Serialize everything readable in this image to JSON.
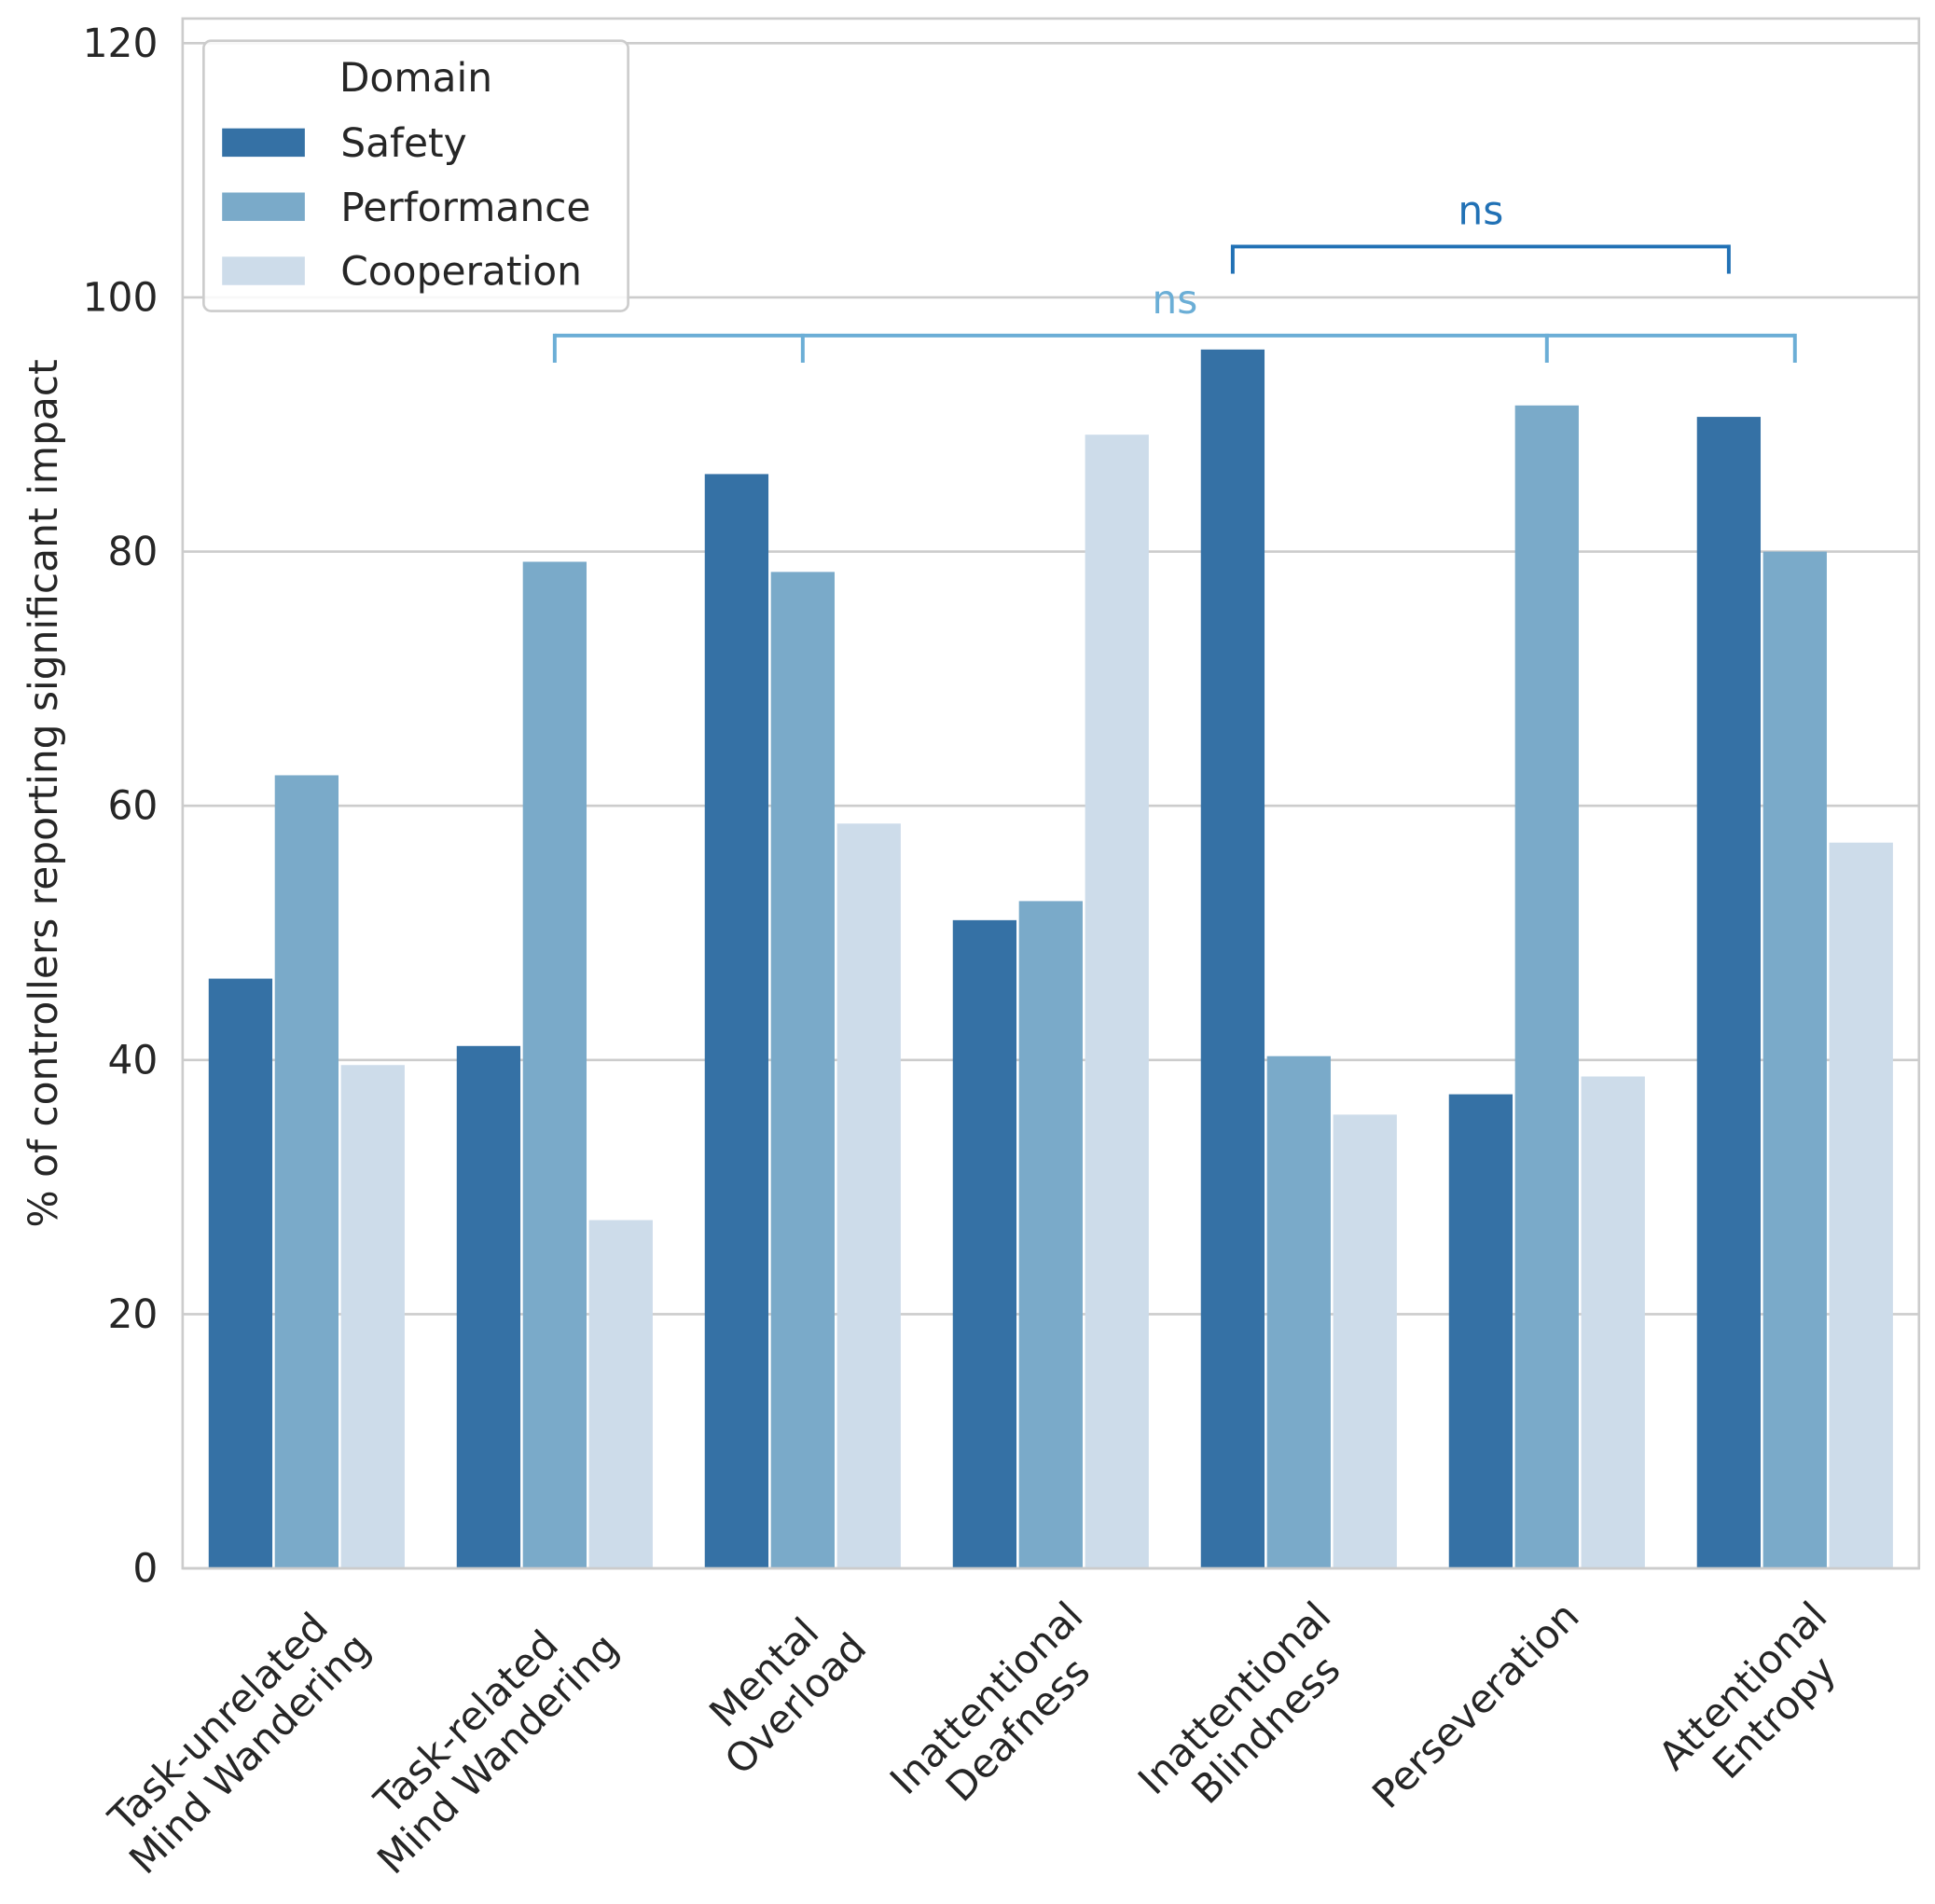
{
  "chart_data": {
    "type": "bar",
    "title": "",
    "xlabel": "",
    "ylabel": "% of controllers reporting significant impact",
    "ylim": [
      0,
      122
    ],
    "yticks": [
      "0",
      "20",
      "40",
      "60",
      "80",
      "100",
      "120"
    ],
    "grid": true,
    "legend": {
      "title": "Domain",
      "placement": "top-left"
    },
    "categories": [
      [
        "Task-unrelated",
        "Mind Wandering"
      ],
      [
        "Task-related",
        "Mind Wandering"
      ],
      [
        "Mental",
        "Overload"
      ],
      [
        "Inattentional",
        "Deafness"
      ],
      [
        "Inattentional",
        "Blindness"
      ],
      [
        "Perseveration"
      ],
      [
        "Attentional",
        "Entropy"
      ]
    ],
    "series": [
      {
        "name": "Safety",
        "color": "#3571a5",
        "values": [
          46.4,
          41.1,
          86.1,
          51.0,
          95.9,
          37.3,
          90.6
        ]
      },
      {
        "name": "Performance",
        "color": "#7aaac9",
        "values": [
          62.4,
          79.2,
          78.4,
          52.5,
          40.3,
          91.5,
          80.0
        ]
      },
      {
        "name": "Cooperation",
        "color": "#cddcea",
        "values": [
          39.6,
          27.4,
          58.6,
          89.2,
          35.7,
          38.7,
          57.1
        ]
      }
    ],
    "annotations": [
      {
        "label": "ns",
        "color": "#6baed6",
        "y": 97,
        "series": "Performance",
        "categories": [
          1,
          2,
          5,
          6
        ],
        "anchor": "center"
      },
      {
        "label": "ns",
        "color": "#2171b5",
        "y": 104,
        "series": "Safety",
        "categories": [
          4,
          6
        ],
        "anchor": "safety"
      }
    ]
  }
}
